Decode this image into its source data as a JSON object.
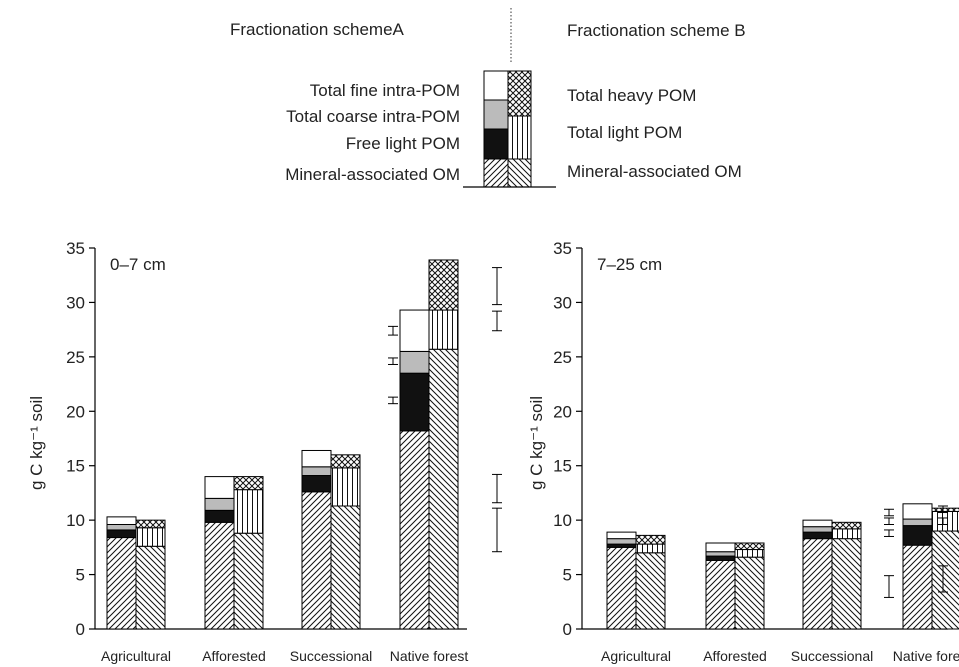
{
  "legend": {
    "scheme_a_title": "Fractionation schemeA",
    "scheme_b_title": "Fractionation scheme B",
    "scheme_a_entries": [
      "Total fine intra-POM",
      "Total coarse intra-POM",
      "Free light POM",
      "Mineral-associated OM"
    ],
    "scheme_b_entries": [
      "Total heavy POM",
      "Total light POM",
      "Mineral-associated OM"
    ]
  },
  "chart_data": [
    {
      "type": "bar",
      "stacked": true,
      "panel_label": "0–7 cm",
      "ylabel": "g C kg⁻¹ soil",
      "ylim": [
        0,
        35
      ],
      "yticks": [
        0,
        5,
        10,
        15,
        20,
        25,
        30,
        35
      ],
      "categories": [
        "Agricultural",
        "Afforested",
        "Successional",
        "Native forest"
      ],
      "scheme_a": {
        "series": [
          {
            "name": "Mineral-associated OM",
            "values": [
              8.4,
              9.8,
              12.6,
              18.2
            ]
          },
          {
            "name": "Free light POM",
            "values": [
              0.7,
              1.1,
              1.5,
              5.3
            ]
          },
          {
            "name": "Total coarse intra-POM",
            "values": [
              0.5,
              1.1,
              0.8,
              2.0
            ]
          },
          {
            "name": "Total fine intra-POM",
            "values": [
              0.7,
              2.0,
              1.5,
              3.8
            ]
          }
        ]
      },
      "scheme_b": {
        "series": [
          {
            "name": "Mineral-associated OM",
            "values": [
              7.6,
              8.8,
              11.3,
              25.7
            ]
          },
          {
            "name": "Total light POM",
            "values": [
              1.7,
              4.0,
              3.5,
              3.6
            ]
          },
          {
            "name": "Total heavy POM",
            "values": [
              0.7,
              1.2,
              1.2,
              4.6
            ]
          }
        ]
      },
      "error_bars_a": [
        {
          "y": 21.0,
          "err": 0.3
        },
        {
          "y": 24.6,
          "err": 0.3
        },
        {
          "y": 27.4,
          "err": 0.4
        }
      ],
      "error_bars_b": [
        {
          "y": 9.1,
          "err": 2.0
        },
        {
          "y": 12.9,
          "err": 1.3
        },
        {
          "y": 28.3,
          "err": 0.9
        },
        {
          "y": 31.5,
          "err": 1.7
        }
      ]
    },
    {
      "type": "bar",
      "stacked": true,
      "panel_label": "7–25 cm",
      "ylabel": "g C kg⁻¹ soil",
      "ylim": [
        0,
        35
      ],
      "yticks": [
        0,
        5,
        10,
        15,
        20,
        25,
        30,
        35
      ],
      "categories": [
        "Agricultural",
        "Afforested",
        "Successional",
        "Native forest"
      ],
      "scheme_a": {
        "series": [
          {
            "name": "Mineral-associated OM",
            "values": [
              7.5,
              6.3,
              8.3,
              7.7
            ]
          },
          {
            "name": "Free light POM",
            "values": [
              0.3,
              0.4,
              0.6,
              1.8
            ]
          },
          {
            "name": "Total coarse intra-POM",
            "values": [
              0.5,
              0.4,
              0.5,
              0.6
            ]
          },
          {
            "name": "Total fine intra-POM",
            "values": [
              0.6,
              0.8,
              0.6,
              1.4
            ]
          }
        ]
      },
      "scheme_b": {
        "series": [
          {
            "name": "Mineral-associated OM",
            "values": [
              7.0,
              6.6,
              8.3,
              9.0
            ]
          },
          {
            "name": "Total light POM",
            "values": [
              0.8,
              0.7,
              0.9,
              1.8
            ]
          },
          {
            "name": "Total heavy POM",
            "values": [
              0.8,
              0.6,
              0.6,
              0.3
            ]
          }
        ]
      },
      "error_bars_a": [
        {
          "y": 3.9,
          "err": 1.0
        },
        {
          "y": 8.8,
          "err": 0.3
        },
        {
          "y": 9.9,
          "err": 0.3
        },
        {
          "y": 10.7,
          "err": 0.3
        }
      ],
      "error_bars_b": [
        {
          "y": 4.6,
          "err": 1.2
        },
        {
          "y": 9.9,
          "err": 0.3
        },
        {
          "y": 11.0,
          "err": 0.3
        }
      ]
    }
  ]
}
